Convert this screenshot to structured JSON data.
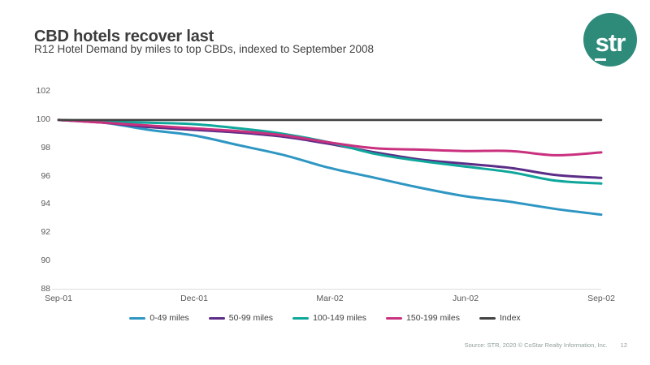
{
  "slide": {
    "title": "CBD hotels recover last",
    "subtitle": "R12 Hotel Demand by miles to top CBDs, indexed to September 2008",
    "logo_text": "str",
    "footer": {
      "source": "Source: STR, 2020 © CoStar Realty Information, Inc.",
      "page_number": "12"
    },
    "colors": {
      "logo_circle": "#2E8B7A",
      "title_text": "#3C3C3C",
      "axis_text": "#595959",
      "axis_line": "#DCDCDC",
      "footer_text": "#8FA09B"
    }
  },
  "chart_data": {
    "type": "line",
    "title": "CBD hotels recover last",
    "subtitle": "R12 Hotel Demand by miles to top CBDs, indexed to September 2008",
    "xlabel": "",
    "ylabel": "",
    "ylim": [
      88,
      102
    ],
    "y_ticks": [
      102,
      100,
      98,
      96,
      94,
      92,
      90,
      88
    ],
    "grid": "off",
    "legend_position": "bottom",
    "x": [
      "Sep-01",
      "Oct-01",
      "Nov-01",
      "Dec-01",
      "Jan-02",
      "Feb-02",
      "Mar-02",
      "Apr-02",
      "May-02",
      "Jun-02",
      "Jul-02",
      "Aug-02",
      "Sep-02"
    ],
    "x_ticks": [
      {
        "label": "Sep-01",
        "month_index": 0
      },
      {
        "label": "Dec-01",
        "month_index": 3
      },
      {
        "label": "Mar-02",
        "month_index": 6
      },
      {
        "label": "Jun-02",
        "month_index": 9
      },
      {
        "label": "Sep-02",
        "month_index": 12
      }
    ],
    "series": [
      {
        "name": "0-49 miles",
        "color": "#2E96C3",
        "values": [
          100,
          99.8,
          99.3,
          98.9,
          98.2,
          97.5,
          96.6,
          95.9,
          95.2,
          94.6,
          94.2,
          93.7,
          93.3
        ]
      },
      {
        "name": "50-99 miles",
        "color": "#5C2D87",
        "values": [
          100,
          99.8,
          99.5,
          99.3,
          99.1,
          98.8,
          98.3,
          97.7,
          97.2,
          96.9,
          96.6,
          96.1,
          95.9
        ]
      },
      {
        "name": "100-149 miles",
        "color": "#0FA79B",
        "values": [
          100,
          99.9,
          99.8,
          99.7,
          99.4,
          99.0,
          98.4,
          97.6,
          97.1,
          96.7,
          96.3,
          95.7,
          95.5
        ]
      },
      {
        "name": "150-199 miles",
        "color": "#C9317F",
        "values": [
          100,
          99.8,
          99.6,
          99.4,
          99.2,
          98.9,
          98.4,
          98.0,
          97.9,
          97.8,
          97.8,
          97.5,
          97.7
        ]
      },
      {
        "name": "Index",
        "color": "#424242",
        "values": [
          100,
          100,
          100,
          100,
          100,
          100,
          100,
          100,
          100,
          100,
          100,
          100,
          100
        ]
      }
    ]
  }
}
